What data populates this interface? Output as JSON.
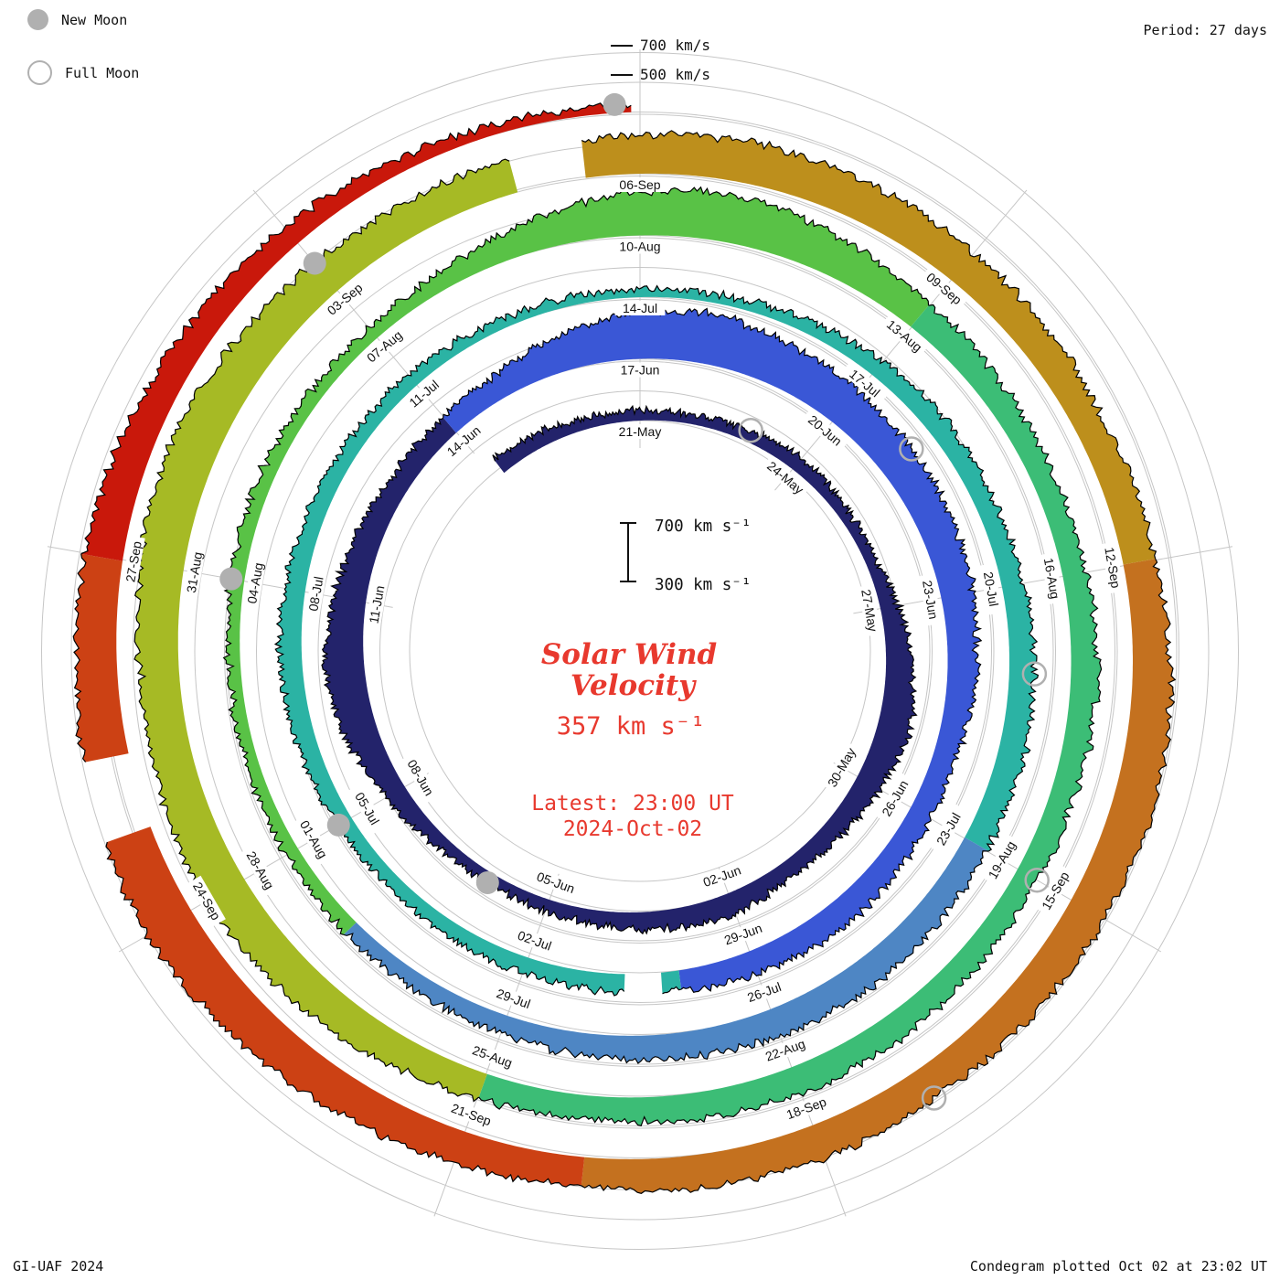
{
  "colors": {
    "accent_red": "#e8392e",
    "grid_gray": "#c6c6c6",
    "moon_gray": "#b0b0b0",
    "trace_outline": "#000000",
    "label_text": "#111111"
  },
  "header": {
    "legend": [
      {
        "type": "new",
        "label": "New Moon"
      },
      {
        "type": "full",
        "label": "Full Moon"
      }
    ],
    "period_label": "Period: 27 days",
    "radial_axis_labels": [
      {
        "label": "700 km/s",
        "level_kms": 700
      },
      {
        "label": "500 km/s",
        "level_kms": 500
      }
    ]
  },
  "center": {
    "scale_top_label": "700 km s⁻¹",
    "scale_bottom_label": "300 km s⁻¹",
    "title_line1": "Solar Wind",
    "title_line2": "Velocity",
    "current_value": "357 km s⁻¹",
    "latest_line1": "Latest: 23:00 UT",
    "latest_line2": "2024-Oct-02"
  },
  "footer": {
    "left": "GI-UAF 2024",
    "right": "Condegram plotted Oct 02 at 23:02 UT"
  },
  "chart_data": {
    "type": "spiral-polar-area",
    "title": "Solar Wind Velocity Condegram",
    "period_days": 27,
    "anchor_date_top": "2024-05-21",
    "latest": "2024-10-02 23:00 UT",
    "latest_velocity_kms": 357,
    "radial_axis": {
      "min_kms": 300,
      "max_kms": 700,
      "grid_levels_kms": [
        300,
        500,
        700
      ]
    },
    "t_start": -3,
    "t_plot_start": -2.8,
    "t_plot_end": 134.96,
    "daily_dates_note": "velocity_kms_daily[0] = 2024-05-18, one value per day through 2024-10-02",
    "velocity_kms_daily": [
      420,
      400,
      380,
      370,
      360,
      380,
      400,
      380,
      370,
      420,
      480,
      520,
      470,
      430,
      410,
      450,
      430,
      400,
      380,
      370,
      390,
      450,
      520,
      560,
      520,
      470,
      440,
      430,
      470,
      550,
      620,
      640,
      600,
      570,
      550,
      540,
      520,
      490,
      460,
      450,
      470,
      480,
      460,
      440,
      420,
      410,
      400,
      390,
      400,
      430,
      450,
      440,
      420,
      400,
      390,
      370,
      360,
      355,
      360,
      380,
      420,
      440,
      430,
      450,
      470,
      480,
      470,
      480,
      500,
      490,
      470,
      450,
      430,
      410,
      400,
      390,
      380,
      380,
      390,
      400,
      390,
      380,
      420,
      520,
      600,
      620,
      560,
      500,
      470,
      450,
      460,
      480,
      470,
      450,
      460,
      480,
      490,
      470,
      460,
      480,
      520,
      560,
      600,
      580,
      560,
      600,
      620,
      580,
      540,
      520,
      540,
      560,
      580,
      560,
      540,
      520,
      500,
      520,
      560,
      580,
      560,
      540,
      520,
      540,
      520,
      500,
      520,
      560,
      600,
      640,
      620,
      580,
      560,
      520,
      480,
      440,
      400,
      357
    ],
    "color_segments": [
      {
        "from_t": -3,
        "to_t": 24,
        "color": "#23236b"
      },
      {
        "from_t": 24,
        "to_t": 40,
        "color": "#3a57d6"
      },
      {
        "from_t": 40,
        "to_t": 63,
        "color": "#2bb3a4"
      },
      {
        "from_t": 63,
        "to_t": 71,
        "color": "#4e86c4"
      },
      {
        "from_t": 71,
        "to_t": 84,
        "color": "#59c246"
      },
      {
        "from_t": 84,
        "to_t": 96,
        "color": "#3cbd76"
      },
      {
        "from_t": 96,
        "to_t": 107,
        "color": "#a6ba25"
      },
      {
        "from_t": 107,
        "to_t": 114,
        "color": "#bd8f1c"
      },
      {
        "from_t": 114,
        "to_t": 122,
        "color": "#c4711f"
      },
      {
        "from_t": 122,
        "to_t": 129,
        "color": "#cc4114"
      },
      {
        "from_t": 129,
        "to_t": 136,
        "color": "#c9180b"
      }
    ],
    "date_labels": [
      {
        "label": "21-May",
        "t": 0
      },
      {
        "label": "24-May",
        "t": 3
      },
      {
        "label": "27-May",
        "t": 6
      },
      {
        "label": "30-May",
        "t": 9
      },
      {
        "label": "02-Jun",
        "t": 12
      },
      {
        "label": "05-Jun",
        "t": 15
      },
      {
        "label": "08-Jun",
        "t": 18
      },
      {
        "label": "11-Jun",
        "t": 21
      },
      {
        "label": "14-Jun",
        "t": 24
      },
      {
        "label": "17-Jun",
        "t": 27
      },
      {
        "label": "20-Jun",
        "t": 30
      },
      {
        "label": "23-Jun",
        "t": 33
      },
      {
        "label": "26-Jun",
        "t": 36
      },
      {
        "label": "29-Jun",
        "t": 39
      },
      {
        "label": "02-Jul",
        "t": 42
      },
      {
        "label": "05-Jul",
        "t": 45
      },
      {
        "label": "08-Jul",
        "t": 48
      },
      {
        "label": "11-Jul",
        "t": 51
      },
      {
        "label": "14-Jul",
        "t": 54
      },
      {
        "label": "17-Jul",
        "t": 57
      },
      {
        "label": "20-Jul",
        "t": 60
      },
      {
        "label": "23-Jul",
        "t": 63
      },
      {
        "label": "26-Jul",
        "t": 66
      },
      {
        "label": "29-Jul",
        "t": 69
      },
      {
        "label": "01-Aug",
        "t": 72
      },
      {
        "label": "04-Aug",
        "t": 75
      },
      {
        "label": "07-Aug",
        "t": 78
      },
      {
        "label": "10-Aug",
        "t": 81
      },
      {
        "label": "13-Aug",
        "t": 84
      },
      {
        "label": "16-Aug",
        "t": 87
      },
      {
        "label": "19-Aug",
        "t": 90
      },
      {
        "label": "22-Aug",
        "t": 93
      },
      {
        "label": "25-Aug",
        "t": 96
      },
      {
        "label": "28-Aug",
        "t": 99
      },
      {
        "label": "31-Aug",
        "t": 102
      },
      {
        "label": "03-Sep",
        "t": 105
      },
      {
        "label": "06-Sep",
        "t": 108
      },
      {
        "label": "09-Sep",
        "t": 111
      },
      {
        "label": "12-Sep",
        "t": 114
      },
      {
        "label": "15-Sep",
        "t": 117
      },
      {
        "label": "18-Sep",
        "t": 120
      },
      {
        "label": "21-Sep",
        "t": 123
      },
      {
        "label": "24-Sep",
        "t": 126
      },
      {
        "label": "27-Sep",
        "t": 129
      }
    ],
    "new_moons_t": [
      16,
      45,
      75,
      105,
      134.8
    ],
    "full_moons_t": [
      2,
      31,
      61,
      90,
      119
    ],
    "data_gaps_t": [
      [
        40.25,
        40.7
      ],
      [
        106.9,
        107.5
      ],
      [
        126.8,
        127.4
      ]
    ]
  }
}
